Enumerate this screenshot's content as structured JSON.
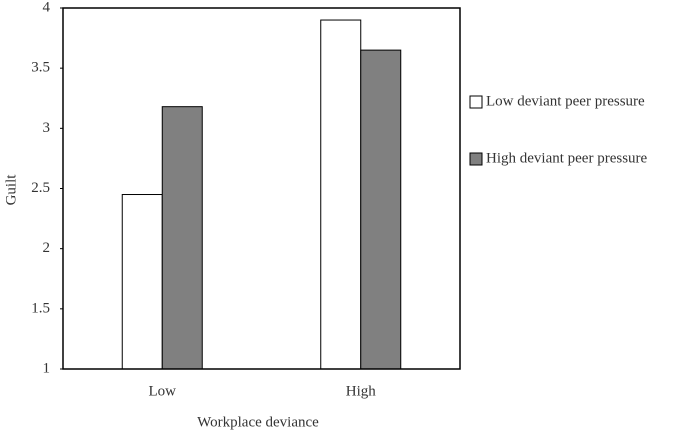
{
  "chart_data": {
    "type": "bar",
    "x_label": "Workplace deviance",
    "y_label": "Guilt",
    "categories": [
      "Low",
      "High"
    ],
    "series": [
      {
        "name": "Low deviant peer pressure",
        "color": "#ffffff",
        "values": [
          2.45,
          3.9
        ]
      },
      {
        "name": "High deviant peer pressure",
        "color": "#808080",
        "values": [
          3.18,
          3.65
        ]
      }
    ],
    "ylim": [
      1,
      4
    ],
    "yticks": [
      1,
      1.5,
      2,
      2.5,
      3,
      3.5,
      4
    ],
    "legend": "right"
  }
}
